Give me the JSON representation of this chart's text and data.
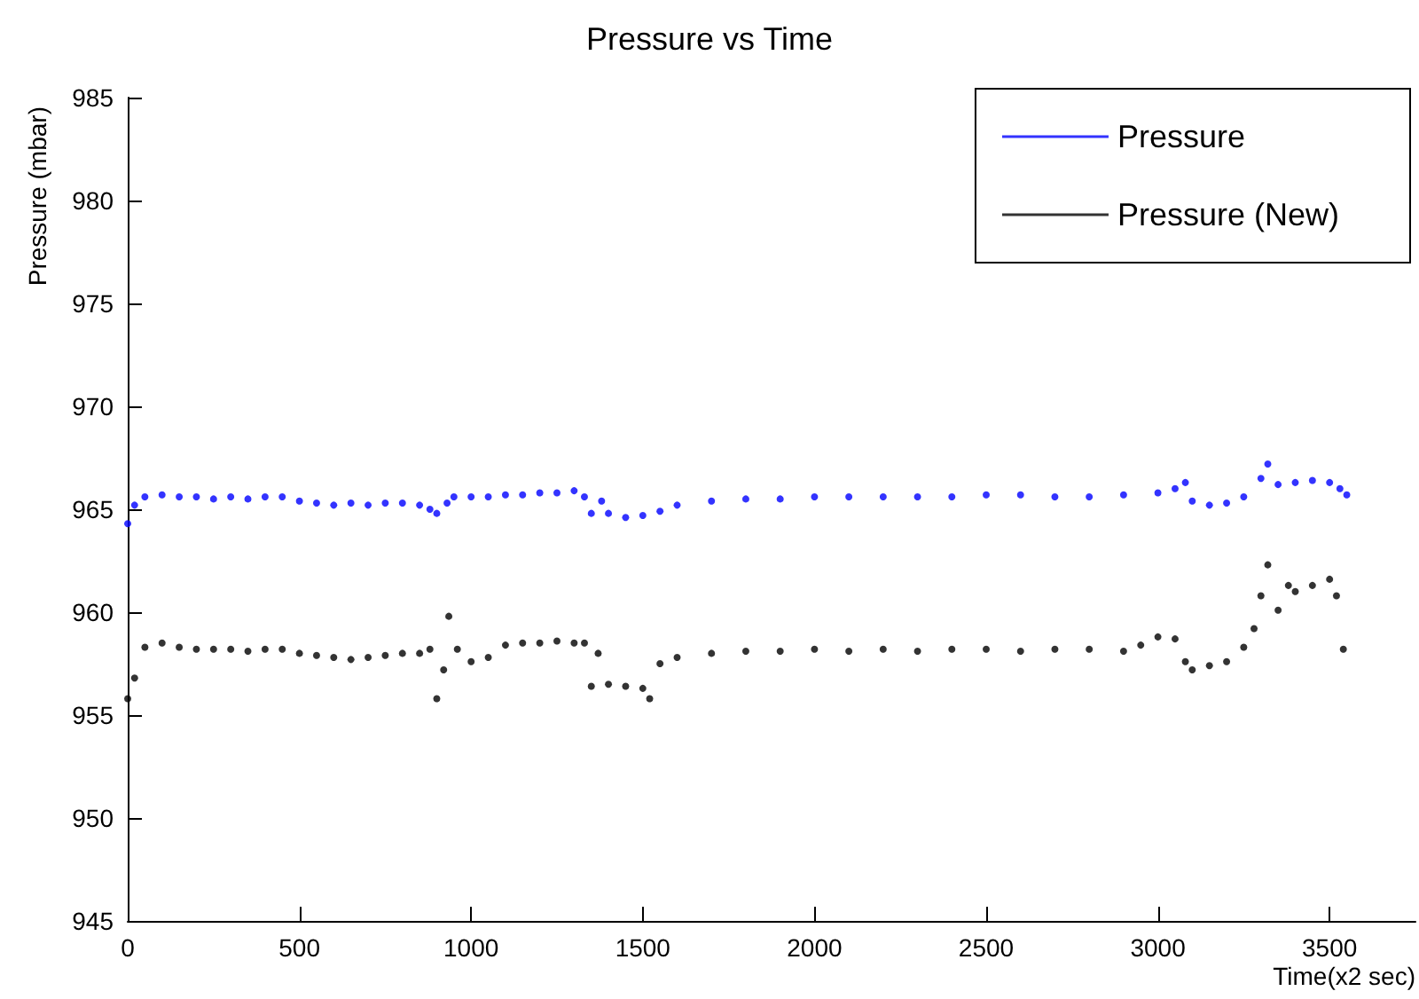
{
  "chart_data": {
    "type": "scatter",
    "title": "Pressure vs Time",
    "xlabel": "Time(x2 sec)",
    "ylabel": "Pressure (mbar)",
    "xlim": [
      0,
      3750
    ],
    "xticks": [
      0,
      500,
      1000,
      1500,
      2000,
      2500,
      3000,
      3500
    ],
    "ylim": [
      945,
      985
    ],
    "yticks": [
      945,
      950,
      955,
      960,
      965,
      970,
      975,
      980,
      985
    ],
    "grid": false,
    "legend": "top right",
    "marker": "circle",
    "series": [
      {
        "name": "Pressure",
        "color": "#0000ff",
        "x": [
          0,
          20,
          50,
          100,
          150,
          200,
          250,
          300,
          350,
          400,
          450,
          500,
          550,
          600,
          650,
          700,
          750,
          800,
          850,
          880,
          900,
          930,
          950,
          1000,
          1050,
          1100,
          1150,
          1200,
          1250,
          1300,
          1330,
          1350,
          1380,
          1400,
          1450,
          1500,
          1550,
          1600,
          1700,
          1800,
          1900,
          2000,
          2100,
          2200,
          2300,
          2400,
          2500,
          2600,
          2700,
          2800,
          2900,
          3000,
          3050,
          3080,
          3100,
          3150,
          3200,
          3250,
          3300,
          3320,
          3350,
          3400,
          3450,
          3500,
          3530,
          3550
        ],
        "values": [
          964.3,
          965.2,
          965.6,
          965.7,
          965.6,
          965.6,
          965.5,
          965.6,
          965.5,
          965.6,
          965.6,
          965.4,
          965.3,
          965.2,
          965.3,
          965.2,
          965.3,
          965.3,
          965.2,
          965,
          964.8,
          965.3,
          965.6,
          965.6,
          965.6,
          965.7,
          965.7,
          965.8,
          965.8,
          965.9,
          965.6,
          964.8,
          965.4,
          964.8,
          964.6,
          964.7,
          964.9,
          965.2,
          965.4,
          965.5,
          965.5,
          965.6,
          965.6,
          965.6,
          965.6,
          965.6,
          965.7,
          965.7,
          965.6,
          965.6,
          965.7,
          965.8,
          966,
          966.3,
          965.4,
          965.2,
          965.3,
          965.6,
          966.5,
          967.2,
          966.2,
          966.3,
          966.4,
          966.3,
          966,
          965.7
        ]
      },
      {
        "name": "Pressure (New)",
        "color": "#000000",
        "x": [
          0,
          20,
          50,
          100,
          150,
          200,
          250,
          300,
          350,
          400,
          450,
          500,
          550,
          600,
          650,
          700,
          750,
          800,
          850,
          880,
          900,
          920,
          935,
          960,
          1000,
          1050,
          1100,
          1150,
          1200,
          1250,
          1300,
          1330,
          1350,
          1370,
          1400,
          1450,
          1500,
          1520,
          1550,
          1600,
          1700,
          1800,
          1900,
          2000,
          2100,
          2200,
          2300,
          2400,
          2500,
          2600,
          2700,
          2800,
          2900,
          2950,
          3000,
          3050,
          3080,
          3100,
          3150,
          3200,
          3250,
          3280,
          3300,
          3320,
          3350,
          3380,
          3400,
          3450,
          3500,
          3520,
          3540
        ],
        "values": [
          955.8,
          956.8,
          958.3,
          958.5,
          958.3,
          958.2,
          958.2,
          958.2,
          958.1,
          958.2,
          958.2,
          958,
          957.9,
          957.8,
          957.7,
          957.8,
          957.9,
          958,
          958,
          958.2,
          955.8,
          957.2,
          959.8,
          958.2,
          957.6,
          957.8,
          958.4,
          958.5,
          958.5,
          958.6,
          958.5,
          958.5,
          956.4,
          958,
          956.5,
          956.4,
          956.3,
          955.8,
          957.5,
          957.8,
          958,
          958.1,
          958.1,
          958.2,
          958.1,
          958.2,
          958.1,
          958.2,
          958.2,
          958.1,
          958.2,
          958.2,
          958.1,
          958.4,
          958.8,
          958.7,
          957.6,
          957.2,
          957.4,
          957.6,
          958.3,
          959.2,
          960.8,
          962.3,
          960.1,
          961.3,
          961,
          961.3,
          961.6,
          960.8,
          958.2
        ]
      }
    ]
  }
}
